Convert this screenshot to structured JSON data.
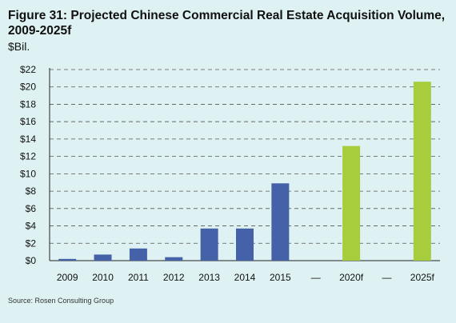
{
  "title_line1": "Figure 31: Projected Chinese Commercial Real Estate Acquisition Volume,",
  "title_line2": "2009-2025f",
  "unit_label": "$Bil.",
  "source": "Source: Rosen Consulting Group",
  "colors": {
    "historical": "#4562a9",
    "forecast": "#a7cc3c",
    "background": "#dff2f3"
  },
  "chart_data": {
    "type": "bar",
    "title": "Figure 31: Projected Chinese Commercial Real Estate Acquisition Volume, 2009-2025f",
    "ylabel": "$Bil.",
    "xlabel": "",
    "ylim": [
      0,
      22
    ],
    "y_ticks": [
      "$0",
      "$2",
      "$4",
      "$6",
      "$8",
      "$10",
      "$12",
      "$14",
      "$16",
      "$18",
      "$20",
      "$22"
    ],
    "grid": "dashed horizontal",
    "categories": [
      "2009",
      "2010",
      "2011",
      "2012",
      "2013",
      "2014",
      "2015",
      "—",
      "2020f",
      "—",
      "2025f"
    ],
    "values": [
      0.2,
      0.7,
      1.4,
      0.4,
      3.7,
      3.7,
      8.9,
      null,
      13.2,
      null,
      20.6
    ],
    "bar_kind": [
      "historical",
      "historical",
      "historical",
      "historical",
      "historical",
      "historical",
      "historical",
      "gap",
      "forecast",
      "gap",
      "forecast"
    ]
  }
}
